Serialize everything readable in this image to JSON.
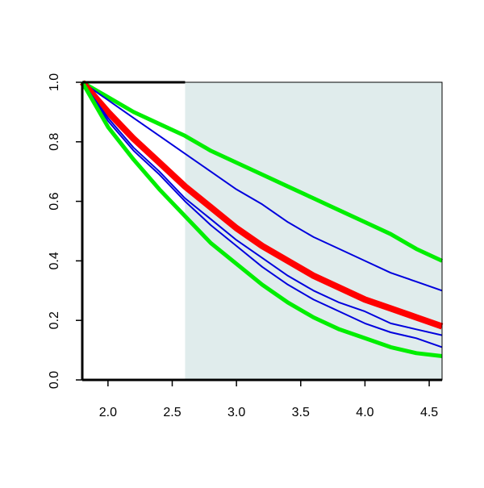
{
  "chart_data": {
    "type": "line",
    "title": "",
    "xlabel": "",
    "ylabel": "",
    "xlim": [
      1.8,
      4.6
    ],
    "ylim": [
      0.0,
      1.0
    ],
    "grid": false,
    "x_ticks": [
      2.0,
      2.5,
      3.0,
      3.5,
      4.0,
      4.5
    ],
    "x_tick_labels": [
      "2.0",
      "2.5",
      "3.0",
      "3.5",
      "4.0",
      "4.5"
    ],
    "y_ticks": [
      0.0,
      0.2,
      0.4,
      0.6,
      0.8,
      1.0
    ],
    "y_tick_labels": [
      "0.0",
      "0.2",
      "0.4",
      "0.6",
      "0.8",
      "1.0"
    ],
    "shaded_region": {
      "x_from": 2.6,
      "x_to": 4.6,
      "color": "#e0ecec"
    },
    "x": [
      1.8,
      2.0,
      2.2,
      2.4,
      2.6,
      2.8,
      3.0,
      3.2,
      3.4,
      3.6,
      3.8,
      4.0,
      4.2,
      4.4,
      4.6
    ],
    "series": [
      {
        "color": "#00ee00",
        "width": 5,
        "values": [
          1.0,
          0.95,
          0.9,
          0.86,
          0.82,
          0.77,
          0.73,
          0.69,
          0.65,
          0.61,
          0.57,
          0.53,
          0.49,
          0.44,
          0.4
        ]
      },
      {
        "color": "#0000dd",
        "width": 2,
        "values": [
          1.0,
          0.94,
          0.88,
          0.82,
          0.76,
          0.7,
          0.64,
          0.59,
          0.53,
          0.48,
          0.44,
          0.4,
          0.36,
          0.33,
          0.3
        ]
      },
      {
        "color": "#ff0000",
        "width": 8,
        "values": [
          1.0,
          0.9,
          0.81,
          0.73,
          0.65,
          0.58,
          0.51,
          0.45,
          0.4,
          0.35,
          0.31,
          0.27,
          0.24,
          0.21,
          0.18
        ]
      },
      {
        "color": "#0000dd",
        "width": 2,
        "values": [
          1.0,
          0.88,
          0.78,
          0.7,
          0.61,
          0.54,
          0.47,
          0.41,
          0.35,
          0.3,
          0.26,
          0.23,
          0.19,
          0.17,
          0.15
        ]
      },
      {
        "color": "#0000dd",
        "width": 2,
        "values": [
          1.0,
          0.87,
          0.77,
          0.69,
          0.6,
          0.52,
          0.45,
          0.38,
          0.32,
          0.27,
          0.23,
          0.19,
          0.16,
          0.14,
          0.11
        ]
      },
      {
        "color": "#00ee00",
        "width": 5,
        "values": [
          1.0,
          0.85,
          0.74,
          0.64,
          0.55,
          0.46,
          0.39,
          0.32,
          0.26,
          0.21,
          0.17,
          0.14,
          0.11,
          0.09,
          0.08
        ]
      }
    ]
  }
}
